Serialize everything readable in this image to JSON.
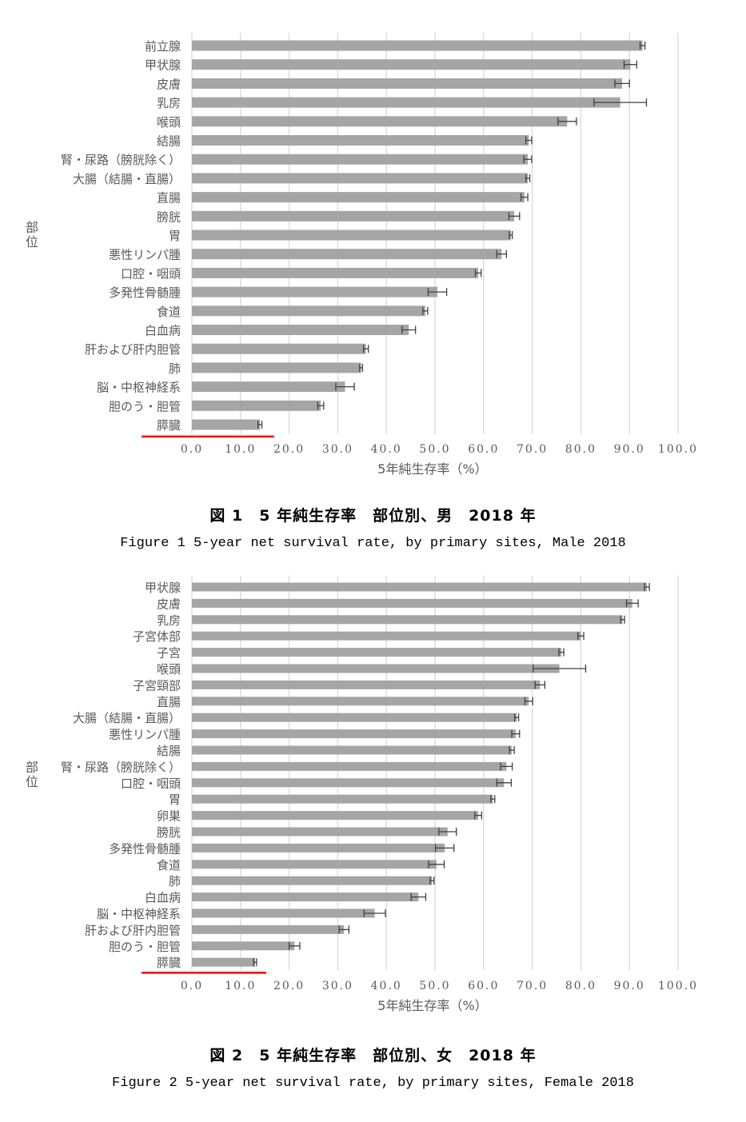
{
  "colors": {
    "bar": "#a5a5a5",
    "grid": "#d9d9d9",
    "error": "#404040",
    "highlight": "#ff0000",
    "text": "#595959"
  },
  "chart_data": [
    {
      "type": "bar",
      "orientation": "horizontal",
      "title": "図 1　5 年純生存率　部位別、男　2018 年",
      "subtitle": "Figure 1 5-year net survival rate, by primary sites, Male 2018",
      "xlabel": "5年純生存率（%）",
      "ylabel": "部位",
      "xlim": [
        0,
        100
      ],
      "xticks": [
        "0.0",
        "10.0",
        "20.0",
        "30.0",
        "40.0",
        "50.0",
        "60.0",
        "70.0",
        "80.0",
        "90.0",
        "100.0"
      ],
      "grid": true,
      "highlight_category": "膵臓",
      "categories": [
        "前立腺",
        "甲状腺",
        "皮膚",
        "乳房",
        "喉頭",
        "結腸",
        "腎・尿路（膀胱除く）",
        "大腸（結腸・直腸）",
        "直腸",
        "膀胱",
        "胃",
        "悪性リンパ腫",
        "口腔・咽頭",
        "多発性骨髄腫",
        "食道",
        "白血病",
        "肝および肝内胆管",
        "肺",
        "脳・中枢神経系",
        "胆のう・胆管",
        "膵臓"
      ],
      "values": [
        92.7,
        90.2,
        88.5,
        88.1,
        77.2,
        69.3,
        69.1,
        69.1,
        68.4,
        66.3,
        65.6,
        63.7,
        58.9,
        50.5,
        48.0,
        44.6,
        35.8,
        34.8,
        31.5,
        26.5,
        14.0
      ],
      "errors": [
        0.5,
        1.3,
        1.5,
        5.4,
        1.9,
        0.6,
        0.8,
        0.4,
        0.7,
        1.1,
        0.3,
        1.0,
        0.6,
        1.9,
        0.5,
        1.4,
        0.5,
        0.3,
        1.9,
        0.6,
        0.4
      ]
    },
    {
      "type": "bar",
      "orientation": "horizontal",
      "title": "図 2　5 年純生存率　部位別、女　2018 年",
      "subtitle": "Figure 2 5-year net survival rate, by primary sites, Female 2018",
      "xlabel": "5年純生存率（%）",
      "ylabel": "部位",
      "xlim": [
        0,
        100
      ],
      "xticks": [
        "0.0",
        "10.0",
        "20.0",
        "30.0",
        "40.0",
        "50.0",
        "60.0",
        "70.0",
        "80.0",
        "90.0",
        "100.0"
      ],
      "grid": true,
      "highlight_category": "膵臓",
      "categories": [
        "甲状腺",
        "皮膚",
        "乳房",
        "子宮体部",
        "子宮",
        "喉頭",
        "子宮頸部",
        "直腸",
        "大腸（結腸・直腸）",
        "悪性リンパ腫",
        "結腸",
        "腎・尿路（膀胱除く）",
        "口腔・咽頭",
        "胃",
        "卵巣",
        "膀胱",
        "多発性骨髄腫",
        "食道",
        "肺",
        "白血病",
        "脳・中枢神経系",
        "肝および肝内胆管",
        "胆のう・胆管",
        "膵臓"
      ],
      "values": [
        93.6,
        90.6,
        88.6,
        80.0,
        76.0,
        75.6,
        71.6,
        69.3,
        66.8,
        66.6,
        65.8,
        64.7,
        64.2,
        61.9,
        58.9,
        52.6,
        52.0,
        50.3,
        49.4,
        46.6,
        37.6,
        31.3,
        21.1,
        13.0
      ],
      "errors": [
        0.5,
        1.2,
        0.4,
        0.6,
        0.5,
        5.4,
        1.0,
        0.8,
        0.4,
        0.8,
        0.5,
        1.2,
        1.5,
        0.4,
        0.7,
        1.8,
        1.9,
        1.6,
        0.4,
        1.5,
        2.2,
        1.0,
        1.1,
        0.3
      ]
    }
  ]
}
